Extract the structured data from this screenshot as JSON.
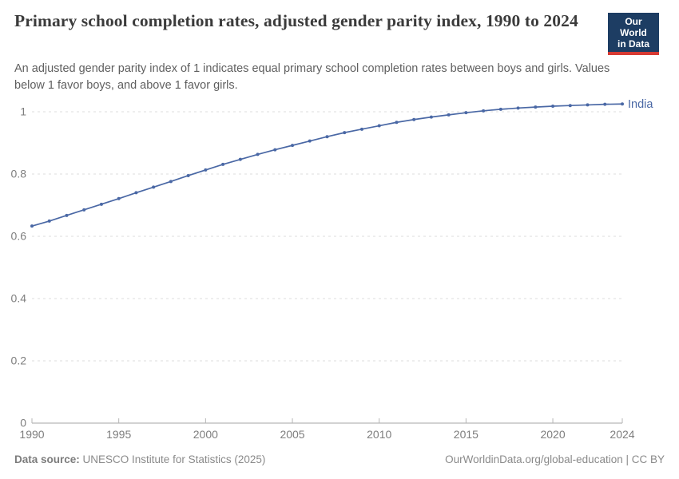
{
  "header": {
    "title": "Primary school completion rates, adjusted gender parity index, 1990 to 2024",
    "subtitle": "An adjusted gender parity index of 1 indicates equal primary school completion rates between boys and girls. Values below 1 favor boys, and above 1 favor girls.",
    "logo": {
      "line1": "Our World",
      "line2": "in Data",
      "bg_color": "#1d3d63",
      "accent_color": "#d73a33"
    }
  },
  "chart_data": {
    "type": "line",
    "title": "Primary school completion rates, adjusted gender parity index, 1990 to 2024",
    "xlabel": "",
    "ylabel": "",
    "xlim": [
      1990,
      2024
    ],
    "ylim": [
      0,
      1.08
    ],
    "x_ticks": [
      1990,
      1995,
      2000,
      2005,
      2010,
      2015,
      2020,
      2024
    ],
    "y_ticks": [
      0,
      0.2,
      0.4,
      0.6,
      0.8,
      1
    ],
    "grid": "horizontal-dashed",
    "legend_position": "end-of-line-label",
    "x": [
      1990,
      1991,
      1992,
      1993,
      1994,
      1995,
      1996,
      1997,
      1998,
      1999,
      2000,
      2001,
      2002,
      2003,
      2004,
      2005,
      2006,
      2007,
      2008,
      2009,
      2010,
      2011,
      2012,
      2013,
      2014,
      2015,
      2016,
      2017,
      2018,
      2019,
      2020,
      2021,
      2022,
      2023,
      2024
    ],
    "series": [
      {
        "name": "India",
        "color": "#4a68a5",
        "values": [
          0.633,
          0.649,
          0.667,
          0.685,
          0.703,
          0.721,
          0.74,
          0.758,
          0.776,
          0.795,
          0.813,
          0.831,
          0.847,
          0.863,
          0.878,
          0.892,
          0.906,
          0.92,
          0.933,
          0.944,
          0.955,
          0.966,
          0.975,
          0.983,
          0.99,
          0.997,
          1.003,
          1.008,
          1.012,
          1.015,
          1.018,
          1.02,
          1.022,
          1.024,
          1.025
        ]
      }
    ]
  },
  "footer": {
    "source_label": "Data source:",
    "source_text": " UNESCO Institute for Statistics (2025)",
    "credit": "OurWorldinData.org/global-education | CC BY"
  },
  "colors": {
    "grid": "#dcdcdc",
    "axis": "#a5a5a5",
    "tick": "#b5b5b5",
    "tick_label": "#7e7e7e",
    "title_text": "#3b3b3b",
    "subtitle_text": "#5f5f5f",
    "footer_text": "#8a8a8a"
  }
}
